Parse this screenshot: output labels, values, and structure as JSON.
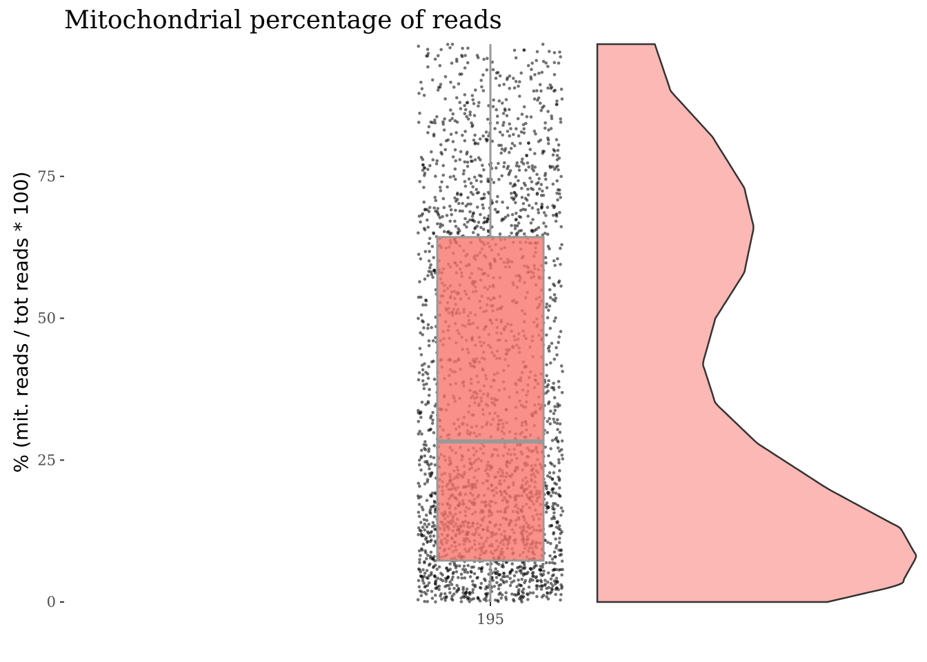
{
  "chart_data": {
    "type": "box-jitter-violin",
    "title": "Mitochondrial percentage of reads",
    "xlabel": "",
    "ylabel": "% (mit. reads / tot reads * 100)",
    "ylim": [
      0,
      98.3
    ],
    "yticks": [
      0,
      25,
      50,
      75
    ],
    "categories": [
      "195"
    ],
    "box": {
      "category": "195",
      "q1": 7.3,
      "median": 28.3,
      "q3": 64.3,
      "whisker_low": 0,
      "whisker_high": 98.3
    },
    "violin_density_profile": [
      {
        "y": 0,
        "density": 0.72
      },
      {
        "y": 3,
        "density": 0.95
      },
      {
        "y": 8,
        "density": 1.0
      },
      {
        "y": 13,
        "density": 0.95
      },
      {
        "y": 20,
        "density": 0.72
      },
      {
        "y": 28,
        "density": 0.5
      },
      {
        "y": 35,
        "density": 0.37
      },
      {
        "y": 42,
        "density": 0.33
      },
      {
        "y": 50,
        "density": 0.37
      },
      {
        "y": 58,
        "density": 0.46
      },
      {
        "y": 66,
        "density": 0.49
      },
      {
        "y": 73,
        "density": 0.46
      },
      {
        "y": 82,
        "density": 0.36
      },
      {
        "y": 90,
        "density": 0.23
      },
      {
        "y": 98.3,
        "density": 0.18
      }
    ],
    "grid": false,
    "legend": "none",
    "colors": {
      "box_fill": "#f8766d",
      "box_border": "#999999",
      "points": "#000000",
      "violin_fill": "#fbb8b4",
      "violin_border": "#333333"
    }
  }
}
